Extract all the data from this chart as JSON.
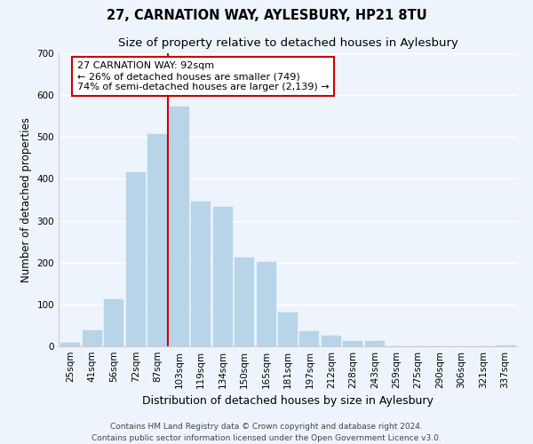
{
  "title": "27, CARNATION WAY, AYLESBURY, HP21 8TU",
  "subtitle": "Size of property relative to detached houses in Aylesbury",
  "xlabel": "Distribution of detached houses by size in Aylesbury",
  "ylabel": "Number of detached properties",
  "categories": [
    "25sqm",
    "41sqm",
    "56sqm",
    "72sqm",
    "87sqm",
    "103sqm",
    "119sqm",
    "134sqm",
    "150sqm",
    "165sqm",
    "181sqm",
    "197sqm",
    "212sqm",
    "228sqm",
    "243sqm",
    "259sqm",
    "275sqm",
    "290sqm",
    "306sqm",
    "321sqm",
    "337sqm"
  ],
  "values": [
    8,
    38,
    112,
    415,
    507,
    573,
    345,
    333,
    212,
    202,
    80,
    37,
    26,
    12,
    12,
    0,
    0,
    0,
    0,
    0,
    2
  ],
  "bar_color": "#b8d4e8",
  "bar_edge_color": "#b8d4e8",
  "vline_x_index": 4.5,
  "vline_color": "#cc0000",
  "annotation_line1": "27 CARNATION WAY: 92sqm",
  "annotation_line2": "← 26% of detached houses are smaller (749)",
  "annotation_line3": "74% of semi-detached houses are larger (2,139) →",
  "annotation_box_edgecolor": "#cc0000",
  "annotation_box_facecolor": "white",
  "ylim": [
    0,
    700
  ],
  "yticks": [
    0,
    100,
    200,
    300,
    400,
    500,
    600,
    700
  ],
  "footer_line1": "Contains HM Land Registry data © Crown copyright and database right 2024.",
  "footer_line2": "Contains public sector information licensed under the Open Government Licence v3.0.",
  "background_color": "#eef4fb",
  "grid_color": "white",
  "title_fontsize": 10.5,
  "subtitle_fontsize": 9.5,
  "xlabel_fontsize": 9,
  "ylabel_fontsize": 8.5,
  "tick_fontsize": 7.5,
  "annotation_fontsize": 8,
  "footer_fontsize": 6.5
}
